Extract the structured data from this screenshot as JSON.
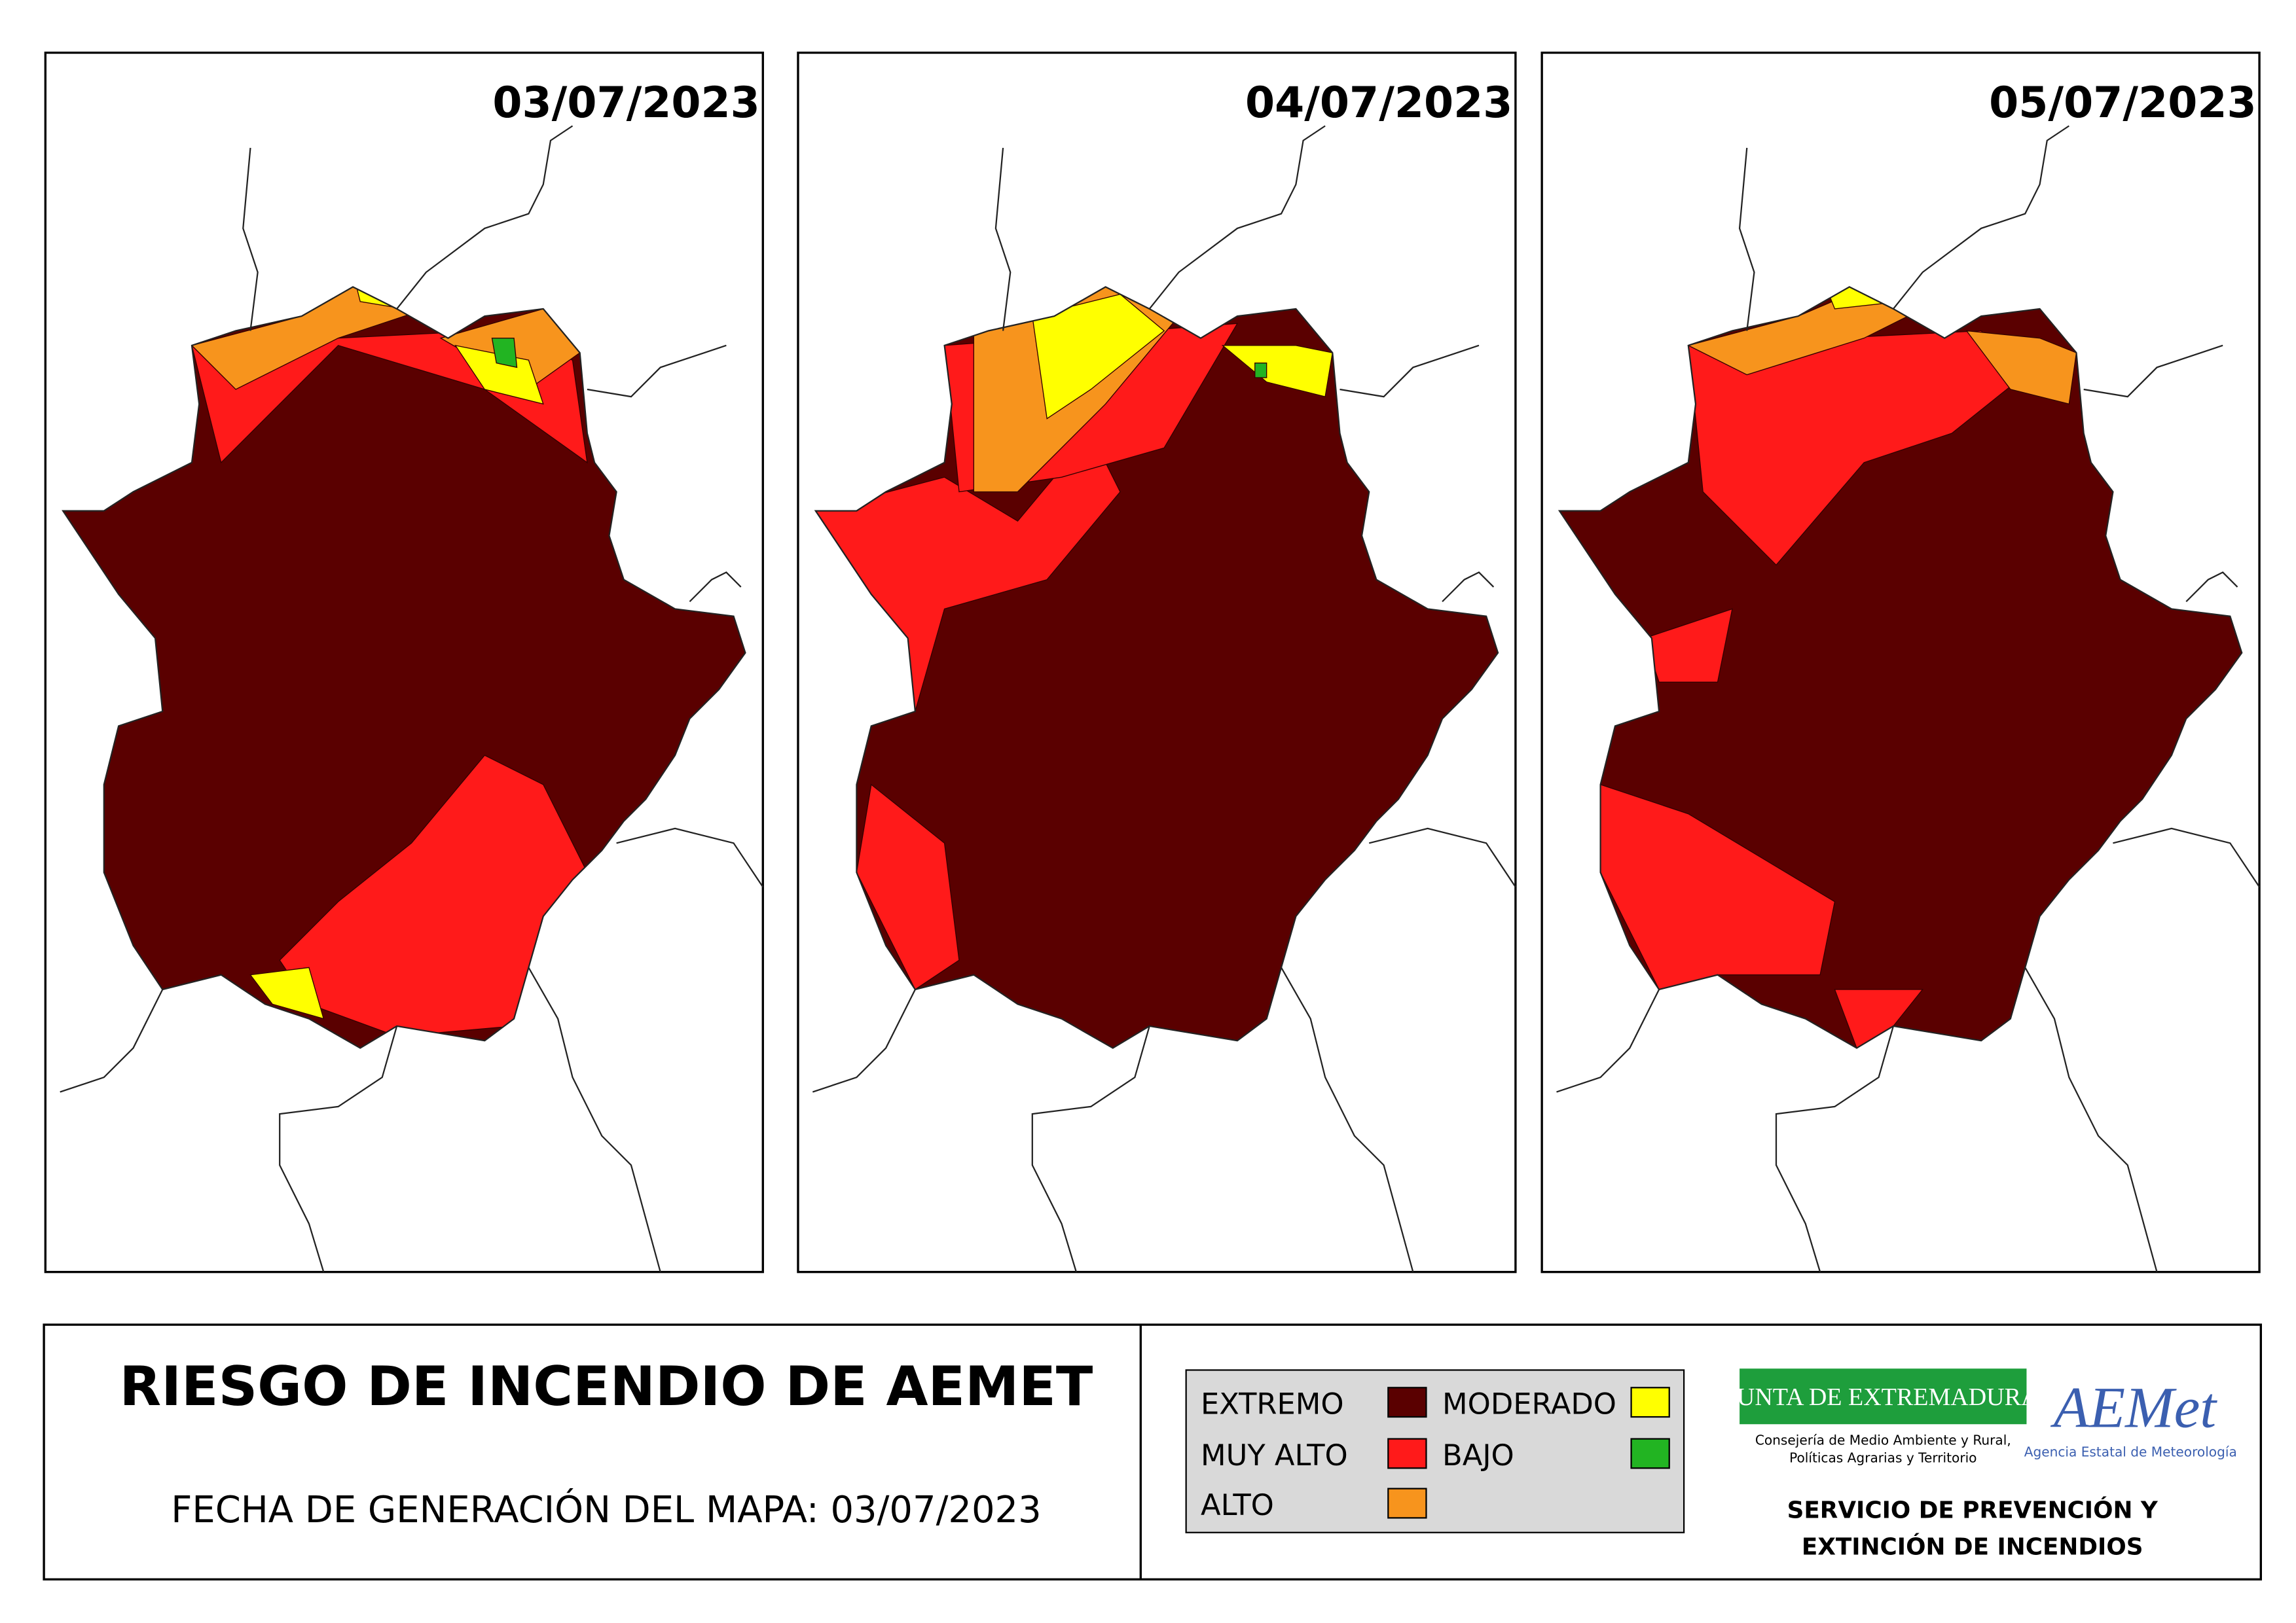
{
  "maps": [
    {
      "date": "03/07/2023"
    },
    {
      "date": "04/07/2023"
    },
    {
      "date": "05/07/2023"
    }
  ],
  "footer": {
    "title": "RIESGO DE INCENDIO DE AEMET",
    "generated": "FECHA DE GENERACIÓN DEL MAPA: 03/07/2023"
  },
  "legend": [
    {
      "label": "EXTREMO",
      "color": "#5a0000"
    },
    {
      "label": "MUY ALTO",
      "color": "#ff1a1a"
    },
    {
      "label": "ALTO",
      "color": "#f7941d"
    },
    {
      "label": "MODERADO",
      "color": "#ffff00"
    },
    {
      "label": "BAJO",
      "color": "#22b422"
    }
  ],
  "logos": {
    "junta": "JUNTA DE EXTREMADURA",
    "junta_sub": [
      "Consejería de Medio Ambiente y Rural,",
      "Políticas Agrarias y Territorio"
    ],
    "aemet": "AEMet",
    "aemet_sub": "Agencia Estatal de Meteorología"
  },
  "service": [
    "SERVICIO DE PREVENCIÓN Y",
    "EXTINCIÓN DE INCENDIOS"
  ]
}
